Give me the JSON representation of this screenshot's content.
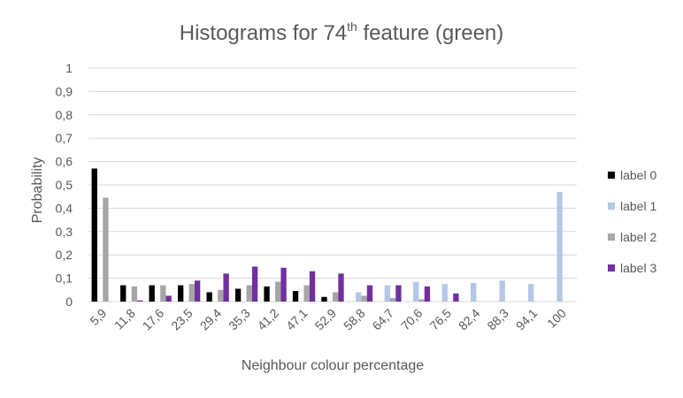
{
  "chart_data": {
    "type": "bar",
    "title": {
      "main": "Histograms for 74",
      "sup": "th",
      "rest": " feature (green)"
    },
    "xlabel": "Neighbour colour percentage",
    "ylabel": "Probability",
    "ylim": [
      0,
      1
    ],
    "yticks": [
      "0",
      "0,1",
      "0,2",
      "0,3",
      "0,4",
      "0,5",
      "0,6",
      "0,7",
      "0,8",
      "0,9",
      "1"
    ],
    "categories": [
      "5,9",
      "11,8",
      "17,6",
      "23,5",
      "29,4",
      "35,3",
      "41,2",
      "47,1",
      "52,9",
      "58,8",
      "64,7",
      "70,6",
      "76,5",
      "82,4",
      "88,3",
      "94,1",
      "100"
    ],
    "series": [
      {
        "name": "label 0",
        "color": "#000000",
        "values": [
          0.57,
          0.07,
          0.07,
          0.07,
          0.04,
          0.055,
          0.065,
          0.045,
          0.02,
          0,
          0,
          0,
          0,
          0,
          0,
          0,
          0
        ]
      },
      {
        "name": "label 1",
        "color": "#b4c7e7",
        "values": [
          0,
          0,
          0,
          0,
          0,
          0,
          0,
          0,
          0,
          0.04,
          0.07,
          0.085,
          0.075,
          0.08,
          0.09,
          0.075,
          0.47
        ]
      },
      {
        "name": "label 2",
        "color": "#a6a6a6",
        "values": [
          0.445,
          0.065,
          0.07,
          0.075,
          0.05,
          0.07,
          0.085,
          0.07,
          0.04,
          0.025,
          0.015,
          0.01,
          0,
          0,
          0,
          0,
          0
        ]
      },
      {
        "name": "label 3",
        "color": "#7030a0",
        "values": [
          0,
          0.005,
          0.025,
          0.09,
          0.12,
          0.15,
          0.145,
          0.13,
          0.12,
          0.07,
          0.07,
          0.065,
          0.035,
          0,
          0,
          0,
          0
        ]
      }
    ],
    "grid": true,
    "legend": "right"
  }
}
